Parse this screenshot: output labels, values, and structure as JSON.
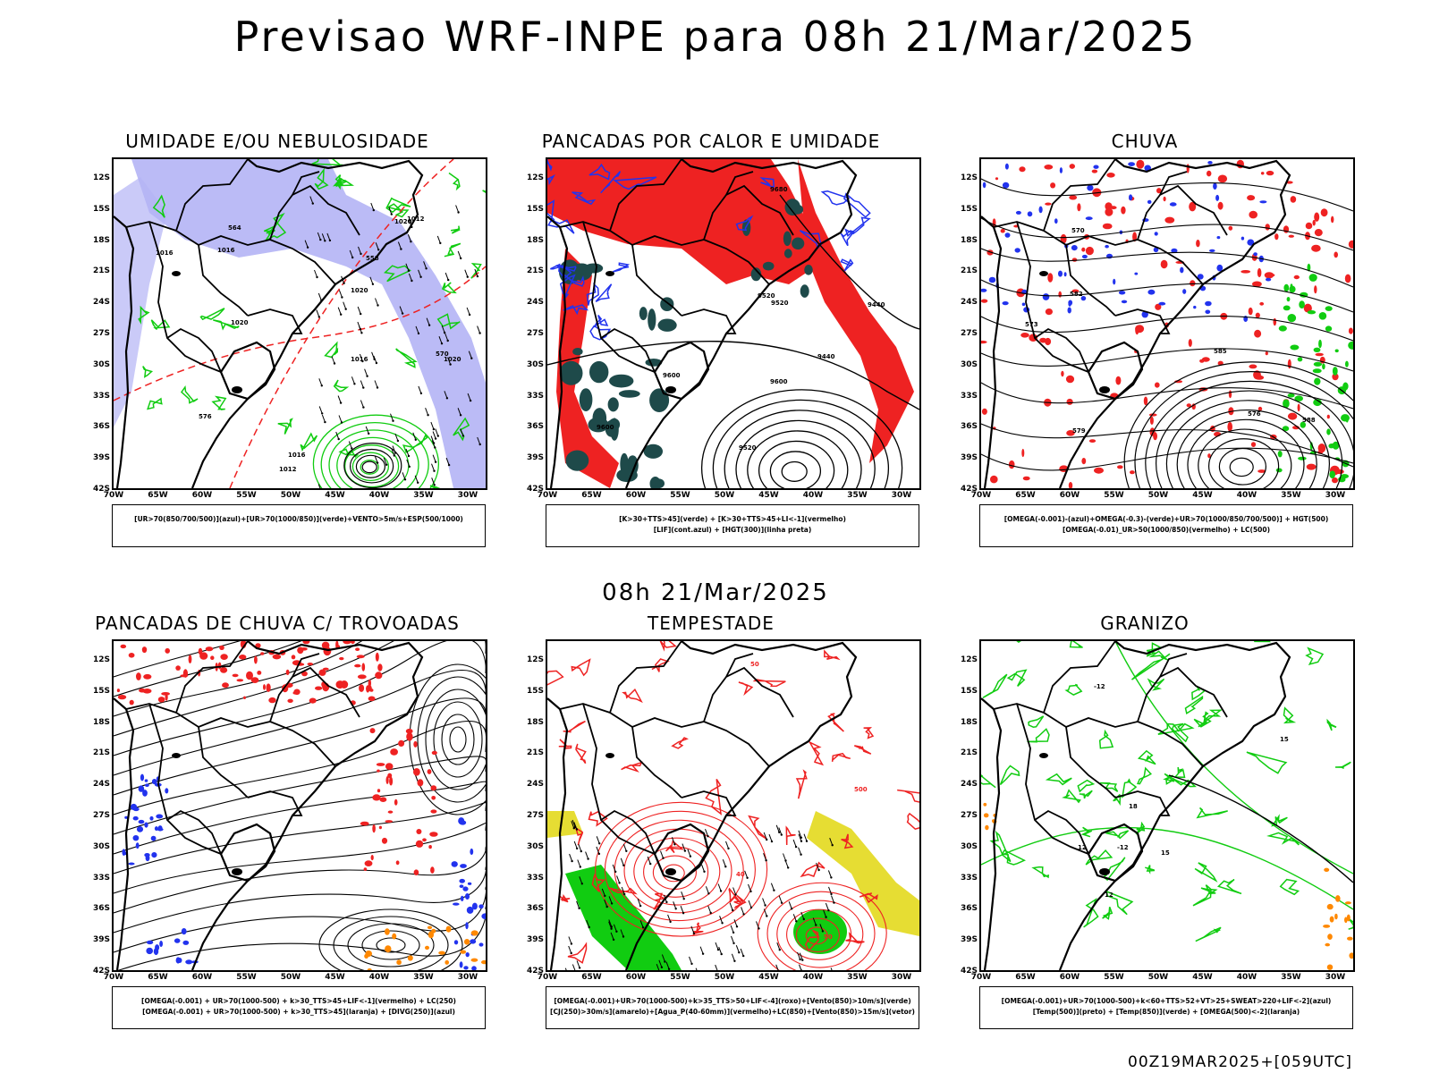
{
  "main_title": "Previsao WRF-INPE  para 08h 21/Mar/2025",
  "mid_title": "08h 21/Mar/2025",
  "footer": "00Z19MAR2025+[059UTC]",
  "lat_labels": [
    "12S",
    "15S",
    "18S",
    "21S",
    "24S",
    "27S",
    "30S",
    "33S",
    "36S",
    "39S",
    "42S"
  ],
  "lon_labels": [
    "70W",
    "65W",
    "60W",
    "55W",
    "50W",
    "45W",
    "40W",
    "35W",
    "30W"
  ],
  "panels": [
    {
      "title": "UMIDADE E/OU NEBULOSIDADE",
      "legend1": "[UR>70(850/700/500)](azul)+[UR>70(1000/850)](verde)+VENTO>5m/s+ESP(500/1000)",
      "legend2": "",
      "contour_labels": [
        "1016",
        "1016",
        "1020",
        "1016",
        "1020",
        "1012",
        "1016",
        "1020",
        "1012",
        "1020",
        "570",
        "564",
        "558",
        "576"
      ]
    },
    {
      "title": "PANCADAS POR CALOR E UMIDADE",
      "legend1": "[K>30+TTS>45](verde) + [K>30+TTS>45+LI<-1](vermelho)",
      "legend2": "[LIF](cont.azul) + [HGT(300)](linha preta)",
      "contour_labels": [
        "9600",
        "9600",
        "9520",
        "9520",
        "9440",
        "9440",
        "9680",
        "9600",
        "9520"
      ]
    },
    {
      "title": "CHUVA",
      "legend1": "[OMEGA(-0.001)-(azul)+OMEGA(-0.3)-(verde)+UR>70(1000/850/700/500)] + HGT(500)",
      "legend2": "[OMEGA(-0.01)_UR>50(1000/850)(vermelho) + LC(500)",
      "contour_labels": [
        "582",
        "579",
        "576",
        "573",
        "570",
        "588",
        "585"
      ]
    },
    {
      "title": "PANCADAS DE CHUVA C/ TROVOADAS",
      "legend1": "[OMEGA(-0.001) + UR>70(1000-500) + k>30_TTS>45+LIF<-1](vermelho) + LC(250)",
      "legend2": "[OMEGA(-0.001) + UR>70(1000-500) + k>30_TTS>45](laranja) + [DIVG(250)](azul)",
      "contour_labels": []
    },
    {
      "title": "TEMPESTADE",
      "legend1": "[OMEGA(-0.001)+UR>70(1000-500)+k>35_TTS>50+LIF<-4](roxo)+[Vento(850)>10m/s](verde)",
      "legend2": "[CJ(250)>30m/s](amarelo)+[Agua_P(40-60mm)](vermelho)+LC(850)+[Vento(850)>15m/s](vetor)",
      "contour_labels": [
        "500",
        "40",
        "50",
        "50"
      ]
    },
    {
      "title": "GRANIZO",
      "legend1": "[OMEGA(-0.001)+UR>70(1000-500)+k<60+TTS>52+VT>25+SWEAT>220+LIF<-2](azul)",
      "legend2": "[Temp(500)](preto) + [Temp(850)](verde) + [OMEGA(500)<-2](laranja)",
      "contour_labels": [
        "-12",
        "-12",
        "12",
        "18",
        "15",
        "15",
        "12"
      ]
    }
  ],
  "colors": {
    "blue": "#2233ee",
    "green": "#11cc11",
    "red": "#ee2222",
    "orange": "#ff8800",
    "yellow": "#e6dd33",
    "teal": "#1e4a4a",
    "lavender": "#b4b4f5"
  }
}
